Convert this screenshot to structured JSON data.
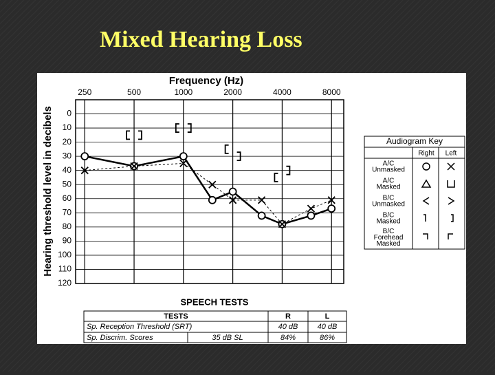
{
  "slide_title": "Mixed Hearing Loss",
  "chart_data": {
    "type": "line",
    "title": "Frequency (Hz)",
    "y_label": "Hearing threshold level in decibels",
    "x": [
      250,
      500,
      1000,
      1500,
      2000,
      3000,
      4000,
      6000,
      8000
    ],
    "x_log": true,
    "y_inverted": true,
    "xlim": [
      220,
      9500
    ],
    "ylim": [
      -10,
      120
    ],
    "xticks": [
      250,
      500,
      1000,
      2000,
      4000,
      8000
    ],
    "yticks": [
      0,
      10,
      20,
      30,
      40,
      50,
      60,
      70,
      80,
      90,
      100,
      110,
      120
    ],
    "grid": true,
    "series": [
      {
        "marker": "circle",
        "line": "solid",
        "color": "#000000",
        "values": [
          30,
          37,
          30,
          61,
          55,
          72,
          78,
          72,
          67
        ]
      },
      {
        "marker": "x",
        "line": "dashed",
        "color": "#000000",
        "values": [
          40,
          37,
          35,
          50,
          61,
          61,
          78,
          67,
          61
        ]
      },
      {
        "marker": "bracket-left",
        "line": "none",
        "color": "#000000",
        "values": [
          null,
          15,
          10,
          null,
          25,
          null,
          45,
          null,
          null
        ]
      },
      {
        "marker": "bracket-right",
        "line": "none",
        "color": "#000000",
        "values": [
          null,
          15,
          10,
          null,
          30,
          null,
          40,
          null,
          null
        ]
      }
    ]
  },
  "key": {
    "title": "Audiogram Key",
    "headers": [
      "Right",
      "Left"
    ],
    "rows": [
      "A/C Unmasked",
      "A/C Masked",
      "B/C Unmasked",
      "B/C Masked",
      "B/C Forehead Masked"
    ]
  },
  "speech_tests": {
    "title": "SPEECH TESTS",
    "headers": [
      "TESTS",
      "R",
      "L"
    ],
    "rows": [
      [
        "Sp. Reception Threshold (SRT)",
        "",
        "40 dB",
        "40 dB"
      ],
      [
        "Sp. Discrim. Scores",
        "35 dB SL",
        "84%",
        "86%"
      ]
    ]
  }
}
